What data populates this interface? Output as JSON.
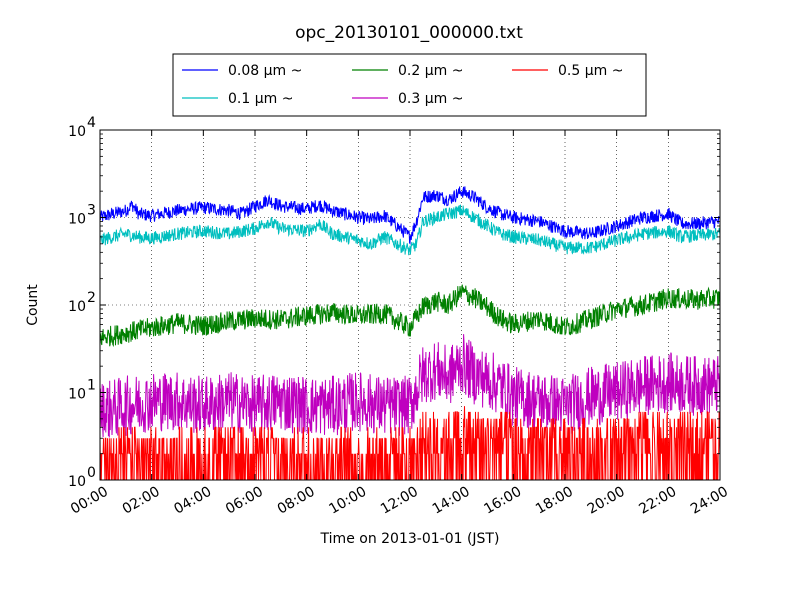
{
  "chart_data": {
    "type": "line",
    "title": "opc_20130101_000000.txt",
    "xlabel": "Time on 2013-01-01 (JST)",
    "ylabel": "Count",
    "y_scale": "log",
    "ylim": [
      1,
      10000
    ],
    "xlim": [
      "00:00",
      "24:00"
    ],
    "grid": true,
    "legend_position": "top-center",
    "x_ticks": [
      "00:00",
      "02:00",
      "04:00",
      "06:00",
      "08:00",
      "10:00",
      "12:00",
      "14:00",
      "16:00",
      "18:00",
      "20:00",
      "22:00",
      "24:00"
    ],
    "y_ticks": [
      {
        "base": "10",
        "exp": "0",
        "value": 1
      },
      {
        "base": "10",
        "exp": "1",
        "value": 10
      },
      {
        "base": "10",
        "exp": "2",
        "value": 100
      },
      {
        "base": "10",
        "exp": "3",
        "value": 1000
      },
      {
        "base": "10",
        "exp": "4",
        "value": 10000
      }
    ],
    "series": [
      {
        "name": "0.08 μm ~",
        "color": "#0000ff",
        "x_hours": [
          0,
          0.5,
          1,
          1.25,
          1.5,
          2,
          3,
          4,
          5,
          5.5,
          6,
          6.5,
          7,
          8,
          8.5,
          9,
          10,
          10.5,
          11,
          11.5,
          12,
          12.25,
          12.5,
          13,
          13.5,
          14,
          14.5,
          15,
          15.5,
          16,
          17,
          18,
          19,
          20,
          21,
          22,
          22.5,
          23,
          24
        ],
        "values": [
          1000,
          1100,
          1200,
          1400,
          1100,
          1050,
          1200,
          1300,
          1200,
          1100,
          1350,
          1600,
          1350,
          1250,
          1400,
          1200,
          1000,
          950,
          1050,
          800,
          600,
          900,
          1700,
          1800,
          1600,
          2000,
          1700,
          1300,
          1100,
          1000,
          900,
          700,
          650,
          800,
          1000,
          1100,
          850,
          850,
          900
        ]
      },
      {
        "name": "0.1 μm ~",
        "color": "#00bfbf",
        "x_hours": [
          0,
          0.5,
          1,
          1.5,
          2,
          3,
          4,
          5,
          6,
          6.5,
          7,
          8,
          8.5,
          9,
          10,
          10.5,
          11,
          11.5,
          12,
          12.25,
          12.5,
          13,
          13.5,
          14,
          14.5,
          15,
          15.5,
          16,
          17,
          18,
          19,
          20,
          21,
          22,
          22.5,
          23,
          24
        ],
        "values": [
          550,
          600,
          650,
          600,
          580,
          650,
          700,
          650,
          750,
          900,
          750,
          700,
          850,
          650,
          550,
          500,
          600,
          500,
          420,
          500,
          900,
          1000,
          1100,
          1200,
          1000,
          800,
          650,
          600,
          550,
          450,
          450,
          550,
          650,
          700,
          600,
          620,
          650
        ]
      },
      {
        "name": "0.2 μm ~",
        "color": "#008000",
        "x_hours": [
          0,
          1,
          2,
          3,
          4,
          5,
          6,
          7,
          8,
          9,
          10,
          11,
          12,
          12.5,
          13,
          13.5,
          14,
          14.5,
          15,
          15.5,
          16,
          17,
          18,
          19,
          20,
          21,
          22,
          23,
          24
        ],
        "values": [
          42,
          48,
          55,
          62,
          58,
          65,
          70,
          68,
          75,
          82,
          75,
          80,
          55,
          95,
          110,
          100,
          140,
          120,
          95,
          70,
          60,
          70,
          55,
          70,
          90,
          100,
          120,
          115,
          120
        ]
      },
      {
        "name": "0.3 μm ~",
        "color": "#bf00bf",
        "x_hours": [
          0,
          1,
          2,
          3,
          4,
          5,
          6,
          7,
          8,
          9,
          10,
          11,
          12,
          12.5,
          13,
          13.5,
          14,
          14.5,
          15,
          15.5,
          16,
          17,
          18,
          19,
          20,
          21,
          22,
          23,
          24
        ],
        "values": [
          6,
          7,
          8,
          8,
          7,
          8,
          7,
          8,
          7,
          7,
          8,
          7,
          7,
          16,
          18,
          15,
          22,
          16,
          14,
          12,
          9,
          8,
          7,
          9,
          10,
          12,
          13,
          12,
          12
        ]
      },
      {
        "name": "0.5 μm ~",
        "color": "#ff0000",
        "x_hours": [
          0,
          2,
          4,
          6,
          8,
          10,
          12,
          12.5,
          13,
          14,
          15,
          16,
          17,
          18,
          19,
          20,
          21,
          22,
          23,
          24
        ],
        "values": [
          1.5,
          1.5,
          1.5,
          1.6,
          1.5,
          1.5,
          1.6,
          2.5,
          2.5,
          3,
          2.5,
          2.5,
          2,
          2,
          2.2,
          2.2,
          2.5,
          2.5,
          2.5,
          2.5
        ]
      }
    ]
  }
}
